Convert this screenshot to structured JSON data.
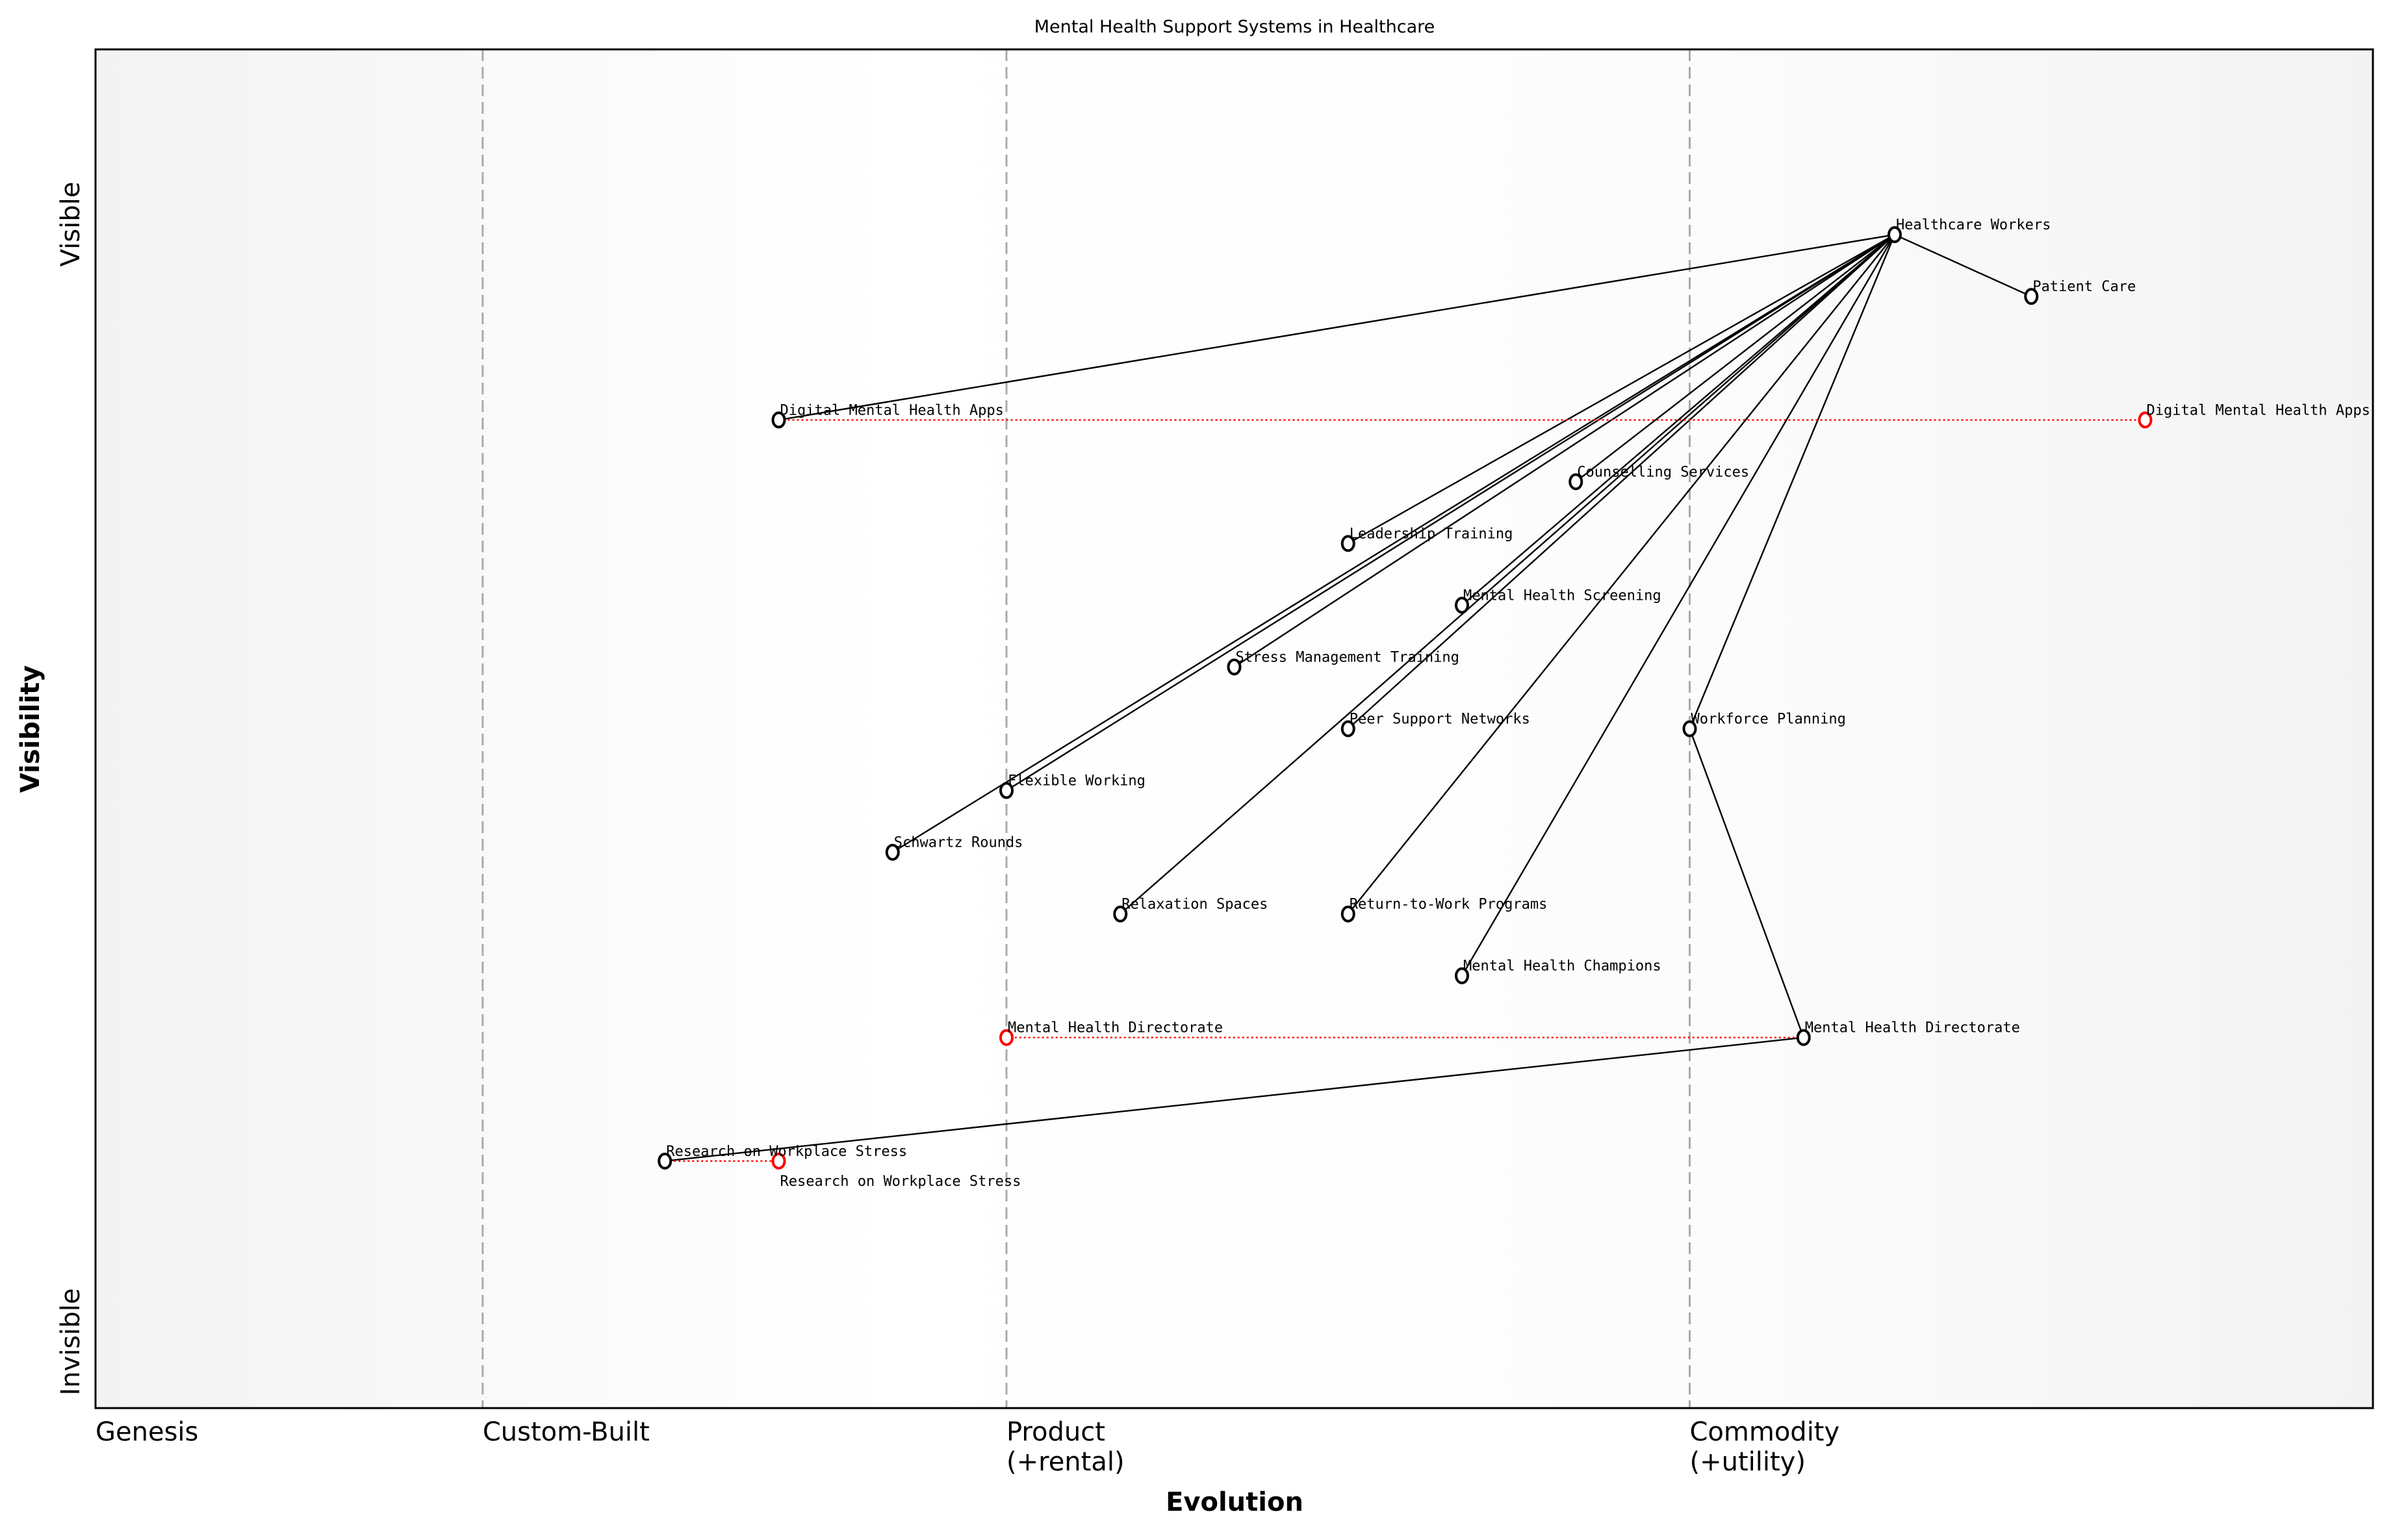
{
  "chart_data": {
    "type": "scatter",
    "title": "Mental Health Support Systems in Healthcare",
    "xlabel": "Evolution",
    "ylabel": "Visibility",
    "xlim": [
      0,
      1
    ],
    "ylim": [
      0,
      1.1
    ],
    "grid": false,
    "x_stages": [
      {
        "label": "Genesis",
        "x": 0
      },
      {
        "label": "Custom-Built",
        "x": 0.17
      },
      {
        "label": "Product\n(+rental)",
        "x": 0.4
      },
      {
        "label": "Commodity\n(+utility)",
        "x": 0.7
      }
    ],
    "y_labels": {
      "top": "Visible",
      "bottom": "Invisible"
    },
    "components": [
      {
        "name": "Healthcare Workers",
        "x": 0.79,
        "y": 0.95
      },
      {
        "name": "Patient Care",
        "x": 0.85,
        "y": 0.9
      },
      {
        "name": "Digital Mental Health Apps",
        "x": 0.3,
        "y": 0.8
      },
      {
        "name": "Counselling Services",
        "x": 0.65,
        "y": 0.75
      },
      {
        "name": "Leadership Training",
        "x": 0.55,
        "y": 0.7
      },
      {
        "name": "Mental Health Screening",
        "x": 0.6,
        "y": 0.65
      },
      {
        "name": "Stress Management Training",
        "x": 0.5,
        "y": 0.6
      },
      {
        "name": "Peer Support Networks",
        "x": 0.55,
        "y": 0.55
      },
      {
        "name": "Workforce Planning",
        "x": 0.7,
        "y": 0.55
      },
      {
        "name": "Flexible Working",
        "x": 0.4,
        "y": 0.5
      },
      {
        "name": "Schwartz Rounds",
        "x": 0.35,
        "y": 0.45
      },
      {
        "name": "Relaxation Spaces",
        "x": 0.45,
        "y": 0.4
      },
      {
        "name": "Return-to-Work Programs",
        "x": 0.55,
        "y": 0.4
      },
      {
        "name": "Mental Health Champions",
        "x": 0.6,
        "y": 0.35
      },
      {
        "name": "Mental Health Directorate",
        "x": 0.75,
        "y": 0.3
      },
      {
        "name": "Research on Workplace Stress",
        "x": 0.25,
        "y": 0.2
      }
    ],
    "links": [
      [
        "Healthcare Workers",
        "Patient Care"
      ],
      [
        "Healthcare Workers",
        "Digital Mental Health Apps"
      ],
      [
        "Healthcare Workers",
        "Counselling Services"
      ],
      [
        "Healthcare Workers",
        "Leadership Training"
      ],
      [
        "Healthcare Workers",
        "Mental Health Screening"
      ],
      [
        "Healthcare Workers",
        "Stress Management Training"
      ],
      [
        "Healthcare Workers",
        "Peer Support Networks"
      ],
      [
        "Healthcare Workers",
        "Workforce Planning"
      ],
      [
        "Healthcare Workers",
        "Flexible Working"
      ],
      [
        "Healthcare Workers",
        "Schwartz Rounds"
      ],
      [
        "Healthcare Workers",
        "Relaxation Spaces"
      ],
      [
        "Healthcare Workers",
        "Return-to-Work Programs"
      ],
      [
        "Healthcare Workers",
        "Mental Health Champions"
      ],
      [
        "Workforce Planning",
        "Mental Health Directorate"
      ],
      [
        "Mental Health Directorate",
        "Research on Workplace Stress"
      ]
    ],
    "evolutions": [
      {
        "name": "Digital Mental Health Apps",
        "from_x": 0.3,
        "to_x": 0.9,
        "y": 0.8
      },
      {
        "name": "Mental Health Directorate",
        "from_x": 0.75,
        "to_x": 0.4,
        "y": 0.3
      },
      {
        "name": "Research on Workplace Stress",
        "from_x": 0.25,
        "to_x": 0.3,
        "y": 0.2
      }
    ],
    "colors": {
      "component": "#000000",
      "evolved": "#ff0000",
      "stage_line": "#aaaaaa",
      "background_edge": "#f3f3f3"
    }
  }
}
